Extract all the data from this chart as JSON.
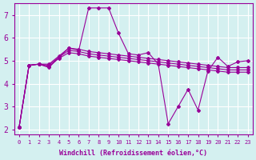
{
  "xlabel": "Windchill (Refroidissement éolien,°C)",
  "background_color": "#d4f0f0",
  "line_color": "#990099",
  "xlim": [
    -0.5,
    23.5
  ],
  "ylim": [
    1.8,
    7.5
  ],
  "xticks": [
    0,
    1,
    2,
    3,
    4,
    5,
    6,
    7,
    8,
    9,
    10,
    11,
    12,
    13,
    14,
    15,
    16,
    17,
    18,
    19,
    20,
    21,
    22,
    23
  ],
  "yticks": [
    2,
    3,
    4,
    5,
    6,
    7
  ],
  "series": [
    [
      2.1,
      4.8,
      4.85,
      4.7,
      5.15,
      5.55,
      5.45,
      7.3,
      7.3,
      7.3,
      6.2,
      5.3,
      5.25,
      5.35,
      4.85,
      2.25,
      3.0,
      3.75,
      2.85,
      4.55,
      5.15,
      4.75,
      4.95,
      5.0
    ],
    [
      2.1,
      4.8,
      4.85,
      4.75,
      5.1,
      5.35,
      5.3,
      5.2,
      5.15,
      5.1,
      5.05,
      5.0,
      4.95,
      4.9,
      4.85,
      4.8,
      4.75,
      4.7,
      4.65,
      4.6,
      4.55,
      4.5,
      4.5,
      4.5
    ],
    [
      2.1,
      4.8,
      4.85,
      4.8,
      5.15,
      5.45,
      5.4,
      5.3,
      5.25,
      5.2,
      5.15,
      5.1,
      5.05,
      5.0,
      4.95,
      4.9,
      4.85,
      4.8,
      4.75,
      4.7,
      4.65,
      4.6,
      4.6,
      4.6
    ],
    [
      2.1,
      4.8,
      4.85,
      4.85,
      5.2,
      5.55,
      5.5,
      5.4,
      5.35,
      5.3,
      5.25,
      5.2,
      5.15,
      5.1,
      5.05,
      5.0,
      4.95,
      4.9,
      4.85,
      4.8,
      4.75,
      4.7,
      4.7,
      4.7
    ]
  ]
}
